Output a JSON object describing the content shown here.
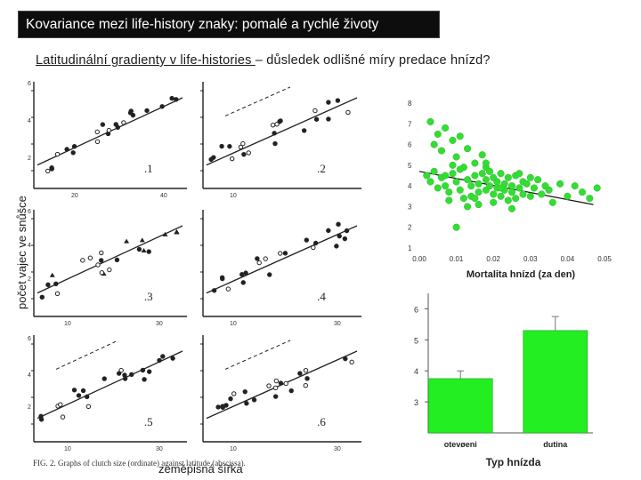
{
  "slide": {
    "title": "Kovariance mezi life-history znaky: pomalé a rychlé životy",
    "subtitle_underlined": "Latitudinální gradienty v life-histories ",
    "subtitle_rest": "– důsledek odlišné míry predace hnízd?",
    "left_ylabel": "počet vajec ve snůšce",
    "left_xlabel": "zeměpisná šířka",
    "figure_caption": "FIG. 2. Graphs of clutch size (ordinate) against latitude (abscissa)."
  },
  "panel_labels": [
    "1",
    "2",
    "3",
    "4",
    "5",
    "6"
  ],
  "chart_data": [
    {
      "type": "scatter",
      "id": "mortality",
      "title": "",
      "xlabel": "Mortalita hnízd (za den)",
      "ylabel": "",
      "xlim": [
        0,
        0.05
      ],
      "ylim": [
        1,
        8
      ],
      "x_ticks": [
        "0.00",
        "0.01",
        "0.02",
        "0.03",
        "0.04",
        "0.05"
      ],
      "y_ticks": [
        "1",
        "2",
        "3",
        "4",
        "5",
        "6",
        "7",
        "8"
      ],
      "trend_line": [
        [
          0.0,
          4.7
        ],
        [
          0.047,
          3.1
        ]
      ],
      "point_color": "#33dd33",
      "points": [
        [
          0.003,
          7.1
        ],
        [
          0.005,
          6.5
        ],
        [
          0.007,
          6.8
        ],
        [
          0.004,
          6.0
        ],
        [
          0.006,
          5.7
        ],
        [
          0.009,
          6.2
        ],
        [
          0.011,
          6.4
        ],
        [
          0.01,
          5.4
        ],
        [
          0.013,
          5.8
        ],
        [
          0.015,
          5.1
        ],
        [
          0.017,
          5.5
        ],
        [
          0.018,
          4.9
        ],
        [
          0.002,
          4.5
        ],
        [
          0.003,
          4.2
        ],
        [
          0.004,
          4.7
        ],
        [
          0.005,
          3.9
        ],
        [
          0.006,
          4.4
        ],
        [
          0.007,
          4.0
        ],
        [
          0.008,
          3.7
        ],
        [
          0.009,
          4.6
        ],
        [
          0.01,
          4.2
        ],
        [
          0.011,
          3.8
        ],
        [
          0.012,
          4.9
        ],
        [
          0.012,
          3.4
        ],
        [
          0.013,
          4.3
        ],
        [
          0.014,
          4.0
        ],
        [
          0.014,
          3.5
        ],
        [
          0.015,
          4.5
        ],
        [
          0.016,
          4.1
        ],
        [
          0.016,
          3.7
        ],
        [
          0.017,
          4.6
        ],
        [
          0.018,
          4.3
        ],
        [
          0.018,
          3.8
        ],
        [
          0.019,
          4.0
        ],
        [
          0.019,
          4.7
        ],
        [
          0.02,
          3.6
        ],
        [
          0.02,
          4.4
        ],
        [
          0.021,
          4.2
        ],
        [
          0.021,
          3.9
        ],
        [
          0.022,
          4.6
        ],
        [
          0.022,
          3.5
        ],
        [
          0.023,
          4.1
        ],
        [
          0.023,
          3.8
        ],
        [
          0.024,
          4.4
        ],
        [
          0.024,
          3.3
        ],
        [
          0.025,
          4.0
        ],
        [
          0.025,
          3.7
        ],
        [
          0.026,
          4.5
        ],
        [
          0.026,
          3.4
        ],
        [
          0.027,
          3.9
        ],
        [
          0.028,
          4.2
        ],
        [
          0.028,
          3.6
        ],
        [
          0.029,
          4.1
        ],
        [
          0.03,
          3.5
        ],
        [
          0.031,
          3.9
        ],
        [
          0.032,
          4.3
        ],
        [
          0.033,
          3.6
        ],
        [
          0.034,
          4.0
        ],
        [
          0.035,
          3.8
        ],
        [
          0.036,
          3.2
        ],
        [
          0.038,
          4.1
        ],
        [
          0.04,
          3.5
        ],
        [
          0.042,
          4.0
        ],
        [
          0.044,
          3.7
        ],
        [
          0.046,
          3.4
        ],
        [
          0.048,
          3.9
        ],
        [
          0.016,
          3.1
        ],
        [
          0.02,
          3.2
        ],
        [
          0.027,
          4.6
        ],
        [
          0.025,
          2.9
        ],
        [
          0.01,
          2.0
        ],
        [
          0.008,
          3.3
        ],
        [
          0.013,
          3.0
        ],
        [
          0.022,
          3.9
        ],
        [
          0.03,
          4.4
        ],
        [
          0.018,
          5.1
        ],
        [
          0.015,
          3.4
        ],
        [
          0.011,
          4.8
        ],
        [
          0.009,
          5.0
        ],
        [
          0.007,
          4.5
        ]
      ]
    },
    {
      "type": "bar",
      "id": "nest-type",
      "title": "",
      "xlabel": "Typ hnízda",
      "ylabel": "",
      "categories": [
        "otevøeni",
        "dutina"
      ],
      "values": [
        3.75,
        5.3
      ],
      "errors": [
        0.25,
        0.45
      ],
      "ylim": [
        2,
        6.5
      ],
      "y_ticks": [
        "3",
        "4",
        "5",
        "6"
      ],
      "bar_color": "#22ee22"
    }
  ]
}
